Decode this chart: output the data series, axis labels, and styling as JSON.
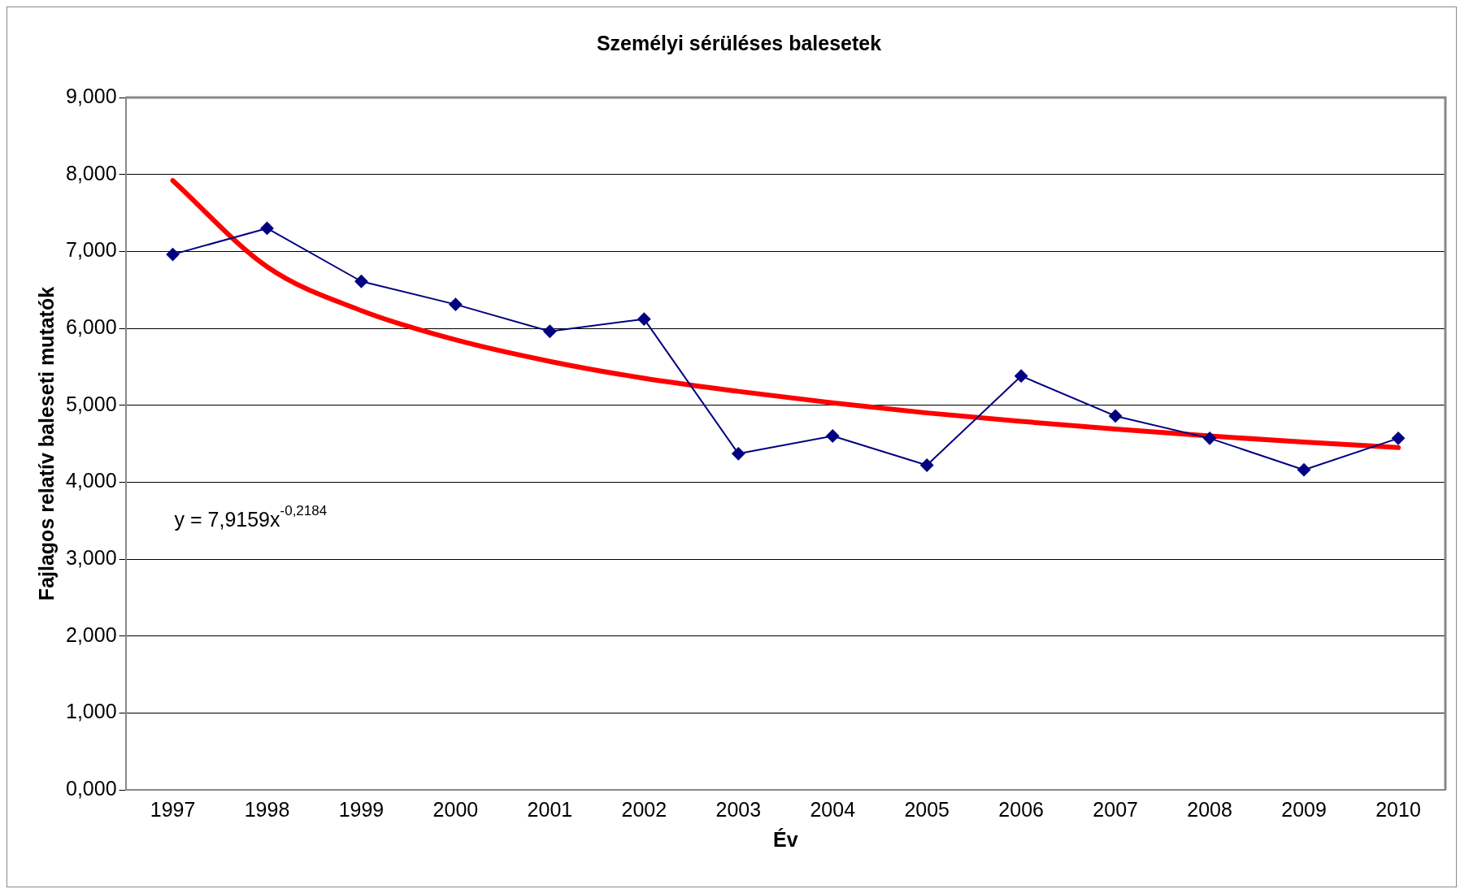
{
  "chart_data": {
    "type": "line",
    "title": "Személyi sérüléses balesetek",
    "xlabel": "Év",
    "ylabel": "Fajlagos relatív baleseti mutatók",
    "categories": [
      "1997",
      "1998",
      "1999",
      "2000",
      "2001",
      "2002",
      "2003",
      "2004",
      "2005",
      "2006",
      "2007",
      "2008",
      "2009",
      "2010"
    ],
    "series": [
      {
        "color": "#000080",
        "marker": "diamond",
        "values": [
          6.96,
          7.3,
          6.61,
          6.31,
          5.96,
          6.12,
          4.37,
          4.6,
          4.22,
          5.38,
          4.86,
          4.57,
          4.16,
          4.57
        ]
      },
      {
        "color": "#ff0000",
        "marker": "none",
        "values": [
          7.92,
          6.8,
          6.23,
          5.85,
          5.57,
          5.35,
          5.18,
          5.03,
          4.9,
          4.79,
          4.69,
          4.6,
          4.52,
          4.45
        ]
      }
    ],
    "ylim": [
      0,
      9
    ],
    "yticks": [
      {
        "value": 0,
        "label": "0,000"
      },
      {
        "value": 1,
        "label": "1,000"
      },
      {
        "value": 2,
        "label": "2,000"
      },
      {
        "value": 3,
        "label": "3,000"
      },
      {
        "value": 4,
        "label": "4,000"
      },
      {
        "value": 5,
        "label": "5,000"
      },
      {
        "value": 6,
        "label": "6,000"
      },
      {
        "value": 7,
        "label": "7,000"
      },
      {
        "value": 8,
        "label": "8,000"
      },
      {
        "value": 9,
        "label": "9,000"
      }
    ],
    "annotations": [
      "y = 7,9159x$^{-0,2184}$"
    ],
    "grid": "y",
    "legend": false
  }
}
